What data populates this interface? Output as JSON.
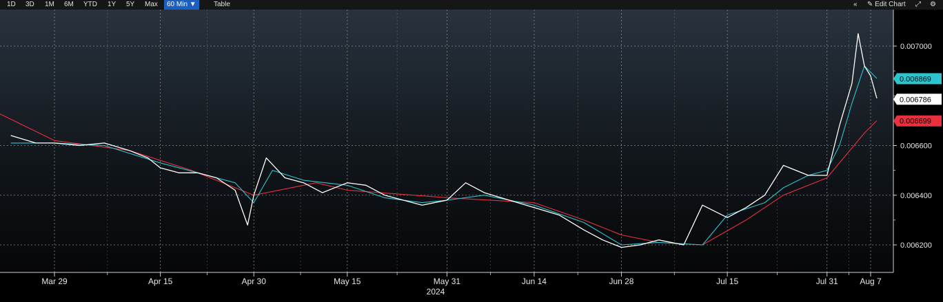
{
  "toolbar": {
    "ranges": [
      "1D",
      "3D",
      "1M",
      "6M",
      "YTD",
      "1Y",
      "5Y",
      "Max"
    ],
    "interval": "60 Min ▼",
    "table_label": "Table",
    "collapse_icon": "«",
    "edit_chart_label": "✎ Edit Chart",
    "expand_icon": "⤢",
    "settings_icon": "⚙"
  },
  "colors": {
    "price": "#ffffff",
    "short_ma": "#2ec4cf",
    "long_ma": "#e8303f",
    "grid": "#8a8a8a"
  },
  "chart_data": {
    "type": "line",
    "title": "",
    "xlabel": "",
    "ylabel": "",
    "ylim": [
      0.00615,
      0.00715
    ],
    "y_ticks": [
      "0.006200",
      "0.006400",
      "0.006600",
      "0.007000"
    ],
    "x_ticks": [
      "Mar 29",
      "Apr 15",
      "Apr 30",
      "May 15",
      "May 31",
      "Jun 14",
      "Jun 28",
      "Jul 15",
      "Jul 31",
      "Aug 7"
    ],
    "year_label": "2024",
    "price_tags": [
      {
        "label": "0.006869",
        "value": 0.006869,
        "color": "#2ec4cf"
      },
      {
        "label": "0.006786",
        "value": 0.006786,
        "color": "#ffffff"
      },
      {
        "label": "0.006699",
        "value": 0.006699,
        "color": "#e8303f"
      }
    ],
    "series": [
      {
        "x": [
          "Mar 22",
          "Mar 26",
          "Mar 29",
          "Apr 2",
          "Apr 6",
          "Apr 10",
          "Apr 13",
          "Apr 15",
          "Apr 18",
          "Apr 21",
          "Apr 24",
          "Apr 27",
          "Apr 29",
          "Apr 30",
          "May 2",
          "May 5",
          "May 8",
          "May 11",
          "May 15",
          "May 18",
          "May 21",
          "May 24",
          "May 27",
          "May 31",
          "Jun 3",
          "Jun 6",
          "Jun 10",
          "Jun 14",
          "Jun 18",
          "Jun 22",
          "Jun 25",
          "Jun 28",
          "Jul 1",
          "Jul 4",
          "Jul 8",
          "Jul 11",
          "Jul 15",
          "Jul 18",
          "Jul 21",
          "Jul 24",
          "Jul 28",
          "Jul 31",
          "Aug 2",
          "Aug 4",
          "Aug 5",
          "Aug 6",
          "Aug 7",
          "Aug 8"
        ],
        "values": [
          0.00664,
          0.00661,
          0.00661,
          0.0066,
          0.00661,
          0.00658,
          0.00655,
          0.00651,
          0.00649,
          0.00649,
          0.00647,
          0.00642,
          0.00628,
          0.0064,
          0.00655,
          0.00647,
          0.00645,
          0.00641,
          0.00645,
          0.00644,
          0.0064,
          0.00638,
          0.00636,
          0.00638,
          0.00645,
          0.00641,
          0.00638,
          0.00635,
          0.00632,
          0.00626,
          0.00622,
          0.00619,
          0.0062,
          0.00622,
          0.0062,
          0.00636,
          0.00631,
          0.00635,
          0.0064,
          0.00652,
          0.00648,
          0.00648,
          0.00668,
          0.00685,
          0.00705,
          0.00692,
          0.00688,
          0.00679
        ]
      },
      {
        "x": [
          "Mar 22",
          "Mar 29",
          "Apr 6",
          "Apr 15",
          "Apr 21",
          "Apr 27",
          "Apr 30",
          "May 3",
          "May 8",
          "May 15",
          "May 21",
          "May 27",
          "May 31",
          "Jun 6",
          "Jun 14",
          "Jun 22",
          "Jun 28",
          "Jul 4",
          "Jul 11",
          "Jul 15",
          "Jul 21",
          "Jul 24",
          "Jul 28",
          "Jul 31",
          "Aug 2",
          "Aug 4",
          "Aug 6",
          "Aug 8"
        ],
        "values": [
          0.00661,
          0.00661,
          0.0066,
          0.00653,
          0.00649,
          0.00645,
          0.00637,
          0.0065,
          0.00646,
          0.00644,
          0.00639,
          0.00637,
          0.00638,
          0.0064,
          0.00636,
          0.00629,
          0.0062,
          0.00621,
          0.0062,
          0.00632,
          0.00637,
          0.00643,
          0.00648,
          0.0065,
          0.0066,
          0.00677,
          0.00692,
          0.00687
        ]
      },
      {
        "x": [
          "Mar 20",
          "Mar 29",
          "Apr 10",
          "Apr 20",
          "Apr 30",
          "May 10",
          "May 15",
          "May 31",
          "Jun 14",
          "Jun 22",
          "Jun 28",
          "Jul 4",
          "Jul 11",
          "Jul 18",
          "Jul 24",
          "Jul 31",
          "Aug 3",
          "Aug 6",
          "Aug 8"
        ],
        "values": [
          0.00673,
          0.00662,
          0.00658,
          0.0065,
          0.0064,
          0.00645,
          0.00642,
          0.00639,
          0.00637,
          0.0063,
          0.00624,
          0.00621,
          0.0062,
          0.0063,
          0.0064,
          0.00647,
          0.00656,
          0.00665,
          0.0067
        ]
      }
    ]
  }
}
